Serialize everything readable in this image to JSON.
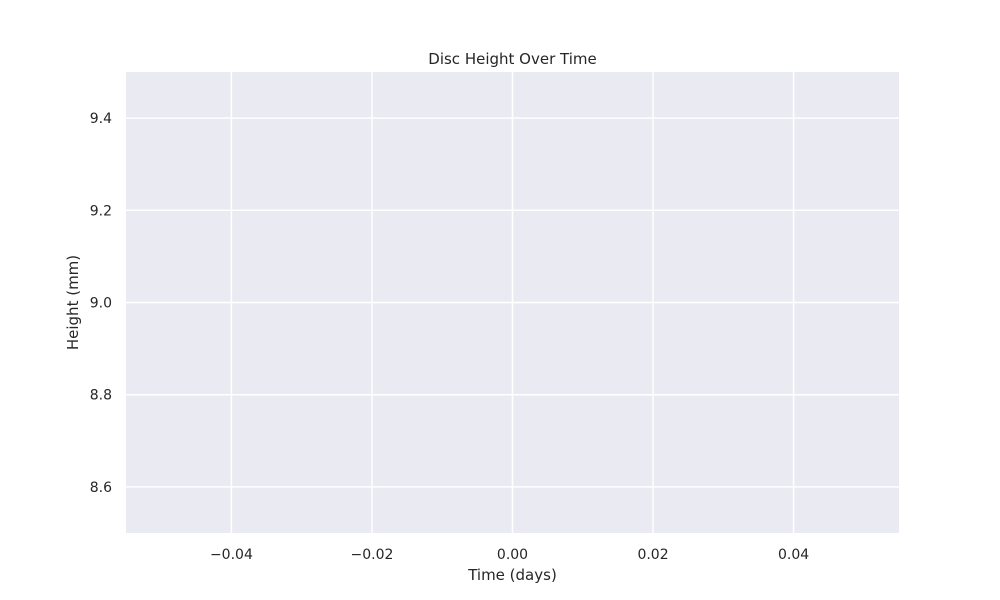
{
  "chart_data": {
    "type": "line",
    "title": "Disc Height Over Time",
    "xlabel": "Time (days)",
    "ylabel": "Height (mm)",
    "xlim": [
      -0.055,
      0.055
    ],
    "ylim": [
      8.5,
      9.5
    ],
    "xticks": [
      -0.04,
      -0.02,
      0.0,
      0.02,
      0.04
    ],
    "xtick_labels": [
      "−0.04",
      "−0.02",
      "0.00",
      "0.02",
      "0.04"
    ],
    "yticks": [
      8.6,
      8.8,
      9.0,
      9.2,
      9.4
    ],
    "ytick_labels": [
      "8.6",
      "8.8",
      "9.0",
      "9.2",
      "9.4"
    ],
    "series": [],
    "grid": true,
    "colors": {
      "plot_background": "#eaeaf2",
      "grid": "#ffffff",
      "text": "#262626"
    }
  }
}
